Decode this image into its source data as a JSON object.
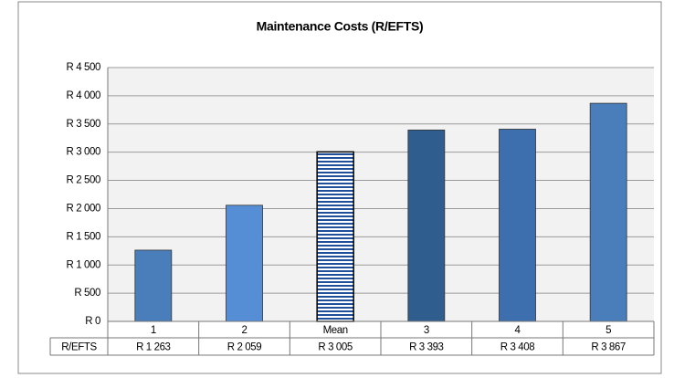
{
  "chart_data": {
    "type": "bar",
    "title": "Maintenance Costs (R/EFTS)",
    "categories": [
      "1",
      "2",
      "Mean",
      "3",
      "4",
      "5"
    ],
    "values": [
      1263,
      2059,
      3005,
      3393,
      3408,
      3867
    ],
    "value_labels": [
      "R 1 263",
      "R 2 059",
      "R 3 005",
      "R 3 393",
      "R 3 408",
      "R 3 867"
    ],
    "table_row_label": "R/EFTS",
    "colors": [
      "#4a7ebb",
      "#558ed5",
      "#1f4e9a",
      "#2f5d8e",
      "#3d6fae",
      "#4a7ebb"
    ],
    "striped": [
      false,
      false,
      true,
      false,
      false,
      false
    ],
    "ylim": [
      0,
      4500
    ],
    "yticks": [
      {
        "value": 0,
        "label": "R 0"
      },
      {
        "value": 500,
        "label": "R 500"
      },
      {
        "value": 1000,
        "label": "R 1 000"
      },
      {
        "value": 1500,
        "label": "R 1 500"
      },
      {
        "value": 2000,
        "label": "R 2 000"
      },
      {
        "value": 2500,
        "label": "R 2 500"
      },
      {
        "value": 3000,
        "label": "R 3 000"
      },
      {
        "value": 3500,
        "label": "R 3 500"
      },
      {
        "value": 4000,
        "label": "R 4 000"
      },
      {
        "value": 4500,
        "label": "R 4 500"
      }
    ],
    "grid": true
  }
}
